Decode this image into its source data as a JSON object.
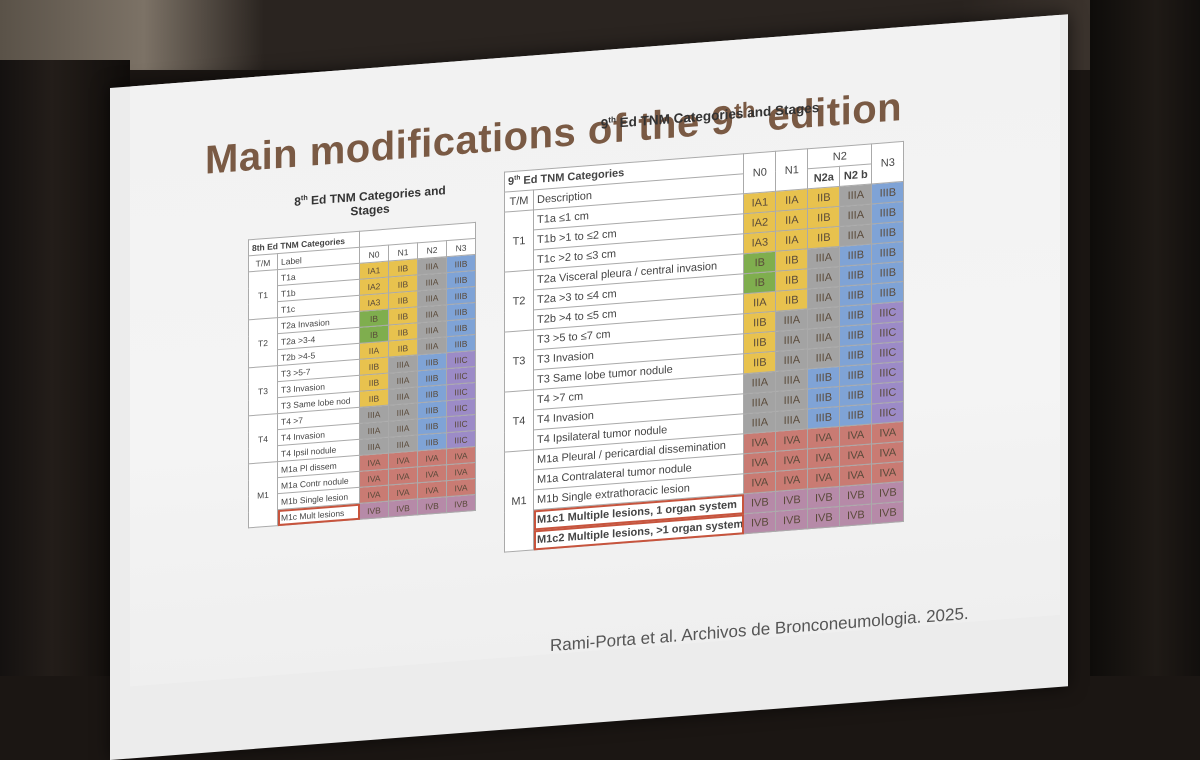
{
  "slide": {
    "title_main": "Main modifications of the 9",
    "title_sup": "th",
    "title_end": " edition",
    "citation": "Rami-Porta et al. Archivos de Bronconeumologia. 2025."
  },
  "table8": {
    "caption_pre": "8",
    "caption_sup": "th",
    "caption_post": " Ed TNM Categories and Stages",
    "header_cat": "8th Ed TNM Categories",
    "col_tm": "T/M",
    "col_label": "Label",
    "cols": [
      "N0",
      "N1",
      "N2",
      "N3"
    ],
    "groups": [
      {
        "tm": "T1",
        "rows": [
          {
            "label": "T1a",
            "cells": [
              "IA1",
              "IIB",
              "IIIA",
              "IIIB"
            ]
          },
          {
            "label": "T1b",
            "cells": [
              "IA2",
              "IIB",
              "IIIA",
              "IIIB"
            ]
          },
          {
            "label": "T1c",
            "cells": [
              "IA3",
              "IIB",
              "IIIA",
              "IIIB"
            ]
          }
        ]
      },
      {
        "tm": "T2",
        "rows": [
          {
            "label": "T2a Invasion",
            "cells": [
              "IB",
              "IIB",
              "IIIA",
              "IIIB"
            ]
          },
          {
            "label": "T2a >3-4",
            "cells": [
              "IB",
              "IIB",
              "IIIA",
              "IIIB"
            ]
          },
          {
            "label": "T2b >4-5",
            "cells": [
              "IIA",
              "IIB",
              "IIIA",
              "IIIB"
            ]
          }
        ]
      },
      {
        "tm": "T3",
        "rows": [
          {
            "label": "T3 >5-7",
            "cells": [
              "IIB",
              "IIIA",
              "IIIB",
              "IIIC"
            ]
          },
          {
            "label": "T3 Invasion",
            "cells": [
              "IIB",
              "IIIA",
              "IIIB",
              "IIIC"
            ]
          },
          {
            "label": "T3 Same lobe nod",
            "cells": [
              "IIB",
              "IIIA",
              "IIIB",
              "IIIC"
            ]
          }
        ]
      },
      {
        "tm": "T4",
        "rows": [
          {
            "label": "T4 >7",
            "cells": [
              "IIIA",
              "IIIA",
              "IIIB",
              "IIIC"
            ]
          },
          {
            "label": "T4 Invasion",
            "cells": [
              "IIIA",
              "IIIA",
              "IIIB",
              "IIIC"
            ]
          },
          {
            "label": "T4 Ipsil nodule",
            "cells": [
              "IIIA",
              "IIIA",
              "IIIB",
              "IIIC"
            ]
          }
        ]
      },
      {
        "tm": "M1",
        "rows": [
          {
            "label": "M1a Pl dissem",
            "cells": [
              "IVA",
              "IVA",
              "IVA",
              "IVA"
            ]
          },
          {
            "label": "M1a Contr nodule",
            "cells": [
              "IVA",
              "IVA",
              "IVA",
              "IVA"
            ]
          },
          {
            "label": "M1b Single lesion",
            "cells": [
              "IVA",
              "IVA",
              "IVA",
              "IVA"
            ]
          },
          {
            "label": "M1c Mult lesions",
            "cells": [
              "IVB",
              "IVB",
              "IVB",
              "IVB"
            ]
          }
        ]
      }
    ]
  },
  "table9": {
    "caption_pre": "9",
    "caption_sup": "th",
    "caption_post": " Ed TNM Categories and Stages",
    "header_cat_pre": "9",
    "header_cat_sup": "th",
    "header_cat_post": " Ed TNM Categories",
    "col_tm": "T/M",
    "col_desc": "Description",
    "col_n2_group": "N2",
    "cols": [
      "N0",
      "N1",
      "N2a",
      "N2 b",
      "N3"
    ],
    "groups": [
      {
        "tm": "T1",
        "rows": [
          {
            "label": "T1a ≤1 cm",
            "cells": [
              "IA1",
              "IIA",
              "IIB",
              "IIIA",
              "IIIB"
            ]
          },
          {
            "label": "T1b >1 to ≤2 cm",
            "cells": [
              "IA2",
              "IIA",
              "IIB",
              "IIIA",
              "IIIB"
            ]
          },
          {
            "label": "T1c >2 to ≤3 cm",
            "cells": [
              "IA3",
              "IIA",
              "IIB",
              "IIIA",
              "IIIB"
            ]
          }
        ]
      },
      {
        "tm": "T2",
        "rows": [
          {
            "label": "T2a Visceral pleura / central invasion",
            "cells": [
              "IB",
              "IIB",
              "IIIA",
              "IIIB",
              "IIIB"
            ]
          },
          {
            "label": "T2a >3 to ≤4 cm",
            "cells": [
              "IB",
              "IIB",
              "IIIA",
              "IIIB",
              "IIIB"
            ]
          },
          {
            "label": "T2b >4 to ≤5 cm",
            "cells": [
              "IIA",
              "IIB",
              "IIIA",
              "IIIB",
              "IIIB"
            ]
          }
        ]
      },
      {
        "tm": "T3",
        "rows": [
          {
            "label": "T3 >5 to ≤7 cm",
            "cells": [
              "IIB",
              "IIIA",
              "IIIA",
              "IIIB",
              "IIIC"
            ]
          },
          {
            "label": "T3 Invasion",
            "cells": [
              "IIB",
              "IIIA",
              "IIIA",
              "IIIB",
              "IIIC"
            ]
          },
          {
            "label": "T3 Same lobe tumor nodule",
            "cells": [
              "IIB",
              "IIIA",
              "IIIA",
              "IIIB",
              "IIIC"
            ]
          }
        ]
      },
      {
        "tm": "T4",
        "rows": [
          {
            "label": "T4 >7 cm",
            "cells": [
              "IIIA",
              "IIIA",
              "IIIB",
              "IIIB",
              "IIIC"
            ]
          },
          {
            "label": "T4 Invasion",
            "cells": [
              "IIIA",
              "IIIA",
              "IIIB",
              "IIIB",
              "IIIC"
            ]
          },
          {
            "label": "T4 Ipsilateral tumor nodule",
            "cells": [
              "IIIA",
              "IIIA",
              "IIIB",
              "IIIB",
              "IIIC"
            ]
          }
        ]
      },
      {
        "tm": "M1",
        "rows": [
          {
            "label": "M1a Pleural / pericardial dissemination",
            "cells": [
              "IVA",
              "IVA",
              "IVA",
              "IVA",
              "IVA"
            ]
          },
          {
            "label": "M1a Contralateral tumor nodule",
            "cells": [
              "IVA",
              "IVA",
              "IVA",
              "IVA",
              "IVA"
            ]
          },
          {
            "label": "M1b Single extrathoracic lesion",
            "cells": [
              "IVA",
              "IVA",
              "IVA",
              "IVA",
              "IVA"
            ]
          },
          {
            "label": "M1c1 Multiple lesions, 1 organ system",
            "cells": [
              "IVB",
              "IVB",
              "IVB",
              "IVB",
              "IVB"
            ]
          },
          {
            "label": "M1c2 Multiple lesions, >1 organ system",
            "cells": [
              "IVB",
              "IVB",
              "IVB",
              "IVB",
              "IVB"
            ]
          }
        ]
      }
    ]
  },
  "colors": {
    "IA1": "#e8c24e",
    "IA2": "#e8c24e",
    "IA3": "#e8c24e",
    "IB": "#7fae4e",
    "IIA": "#e8c24e",
    "IIB": "#e8c24e",
    "IIIA": "#a3a3a3",
    "IIIB": "#7fa3d6",
    "IIIC": "#9c8bc7",
    "IVA": "#c97b73",
    "IVB": "#b68aa8",
    "title": "#7a5a44",
    "highlight": "#c7543d"
  }
}
